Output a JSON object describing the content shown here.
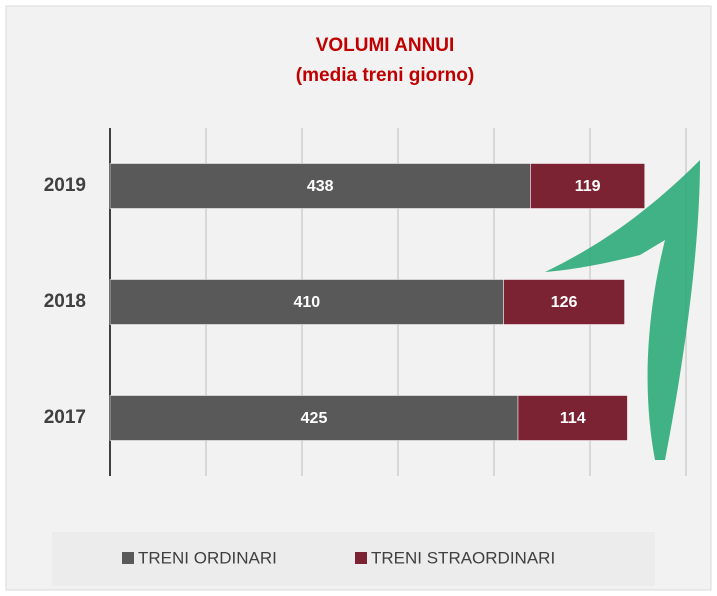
{
  "chart_data": {
    "type": "hbar_stacked",
    "title": "VOLUMI ANNUI",
    "subtitle": "(media treni giorno)",
    "categories": [
      "2019",
      "2018",
      "2017"
    ],
    "series": [
      {
        "name": "TRENI ORDINARI",
        "color": "#595959",
        "values": [
          438,
          410,
          425
        ]
      },
      {
        "name": "TRENI STRAORDINARI",
        "color": "#7b2233",
        "values": [
          119,
          126,
          114
        ]
      }
    ],
    "xlim": [
      0,
      600
    ],
    "xticks": [
      0,
      100,
      200,
      300,
      400,
      500,
      600
    ],
    "grid": true,
    "legend": "bottom"
  }
}
